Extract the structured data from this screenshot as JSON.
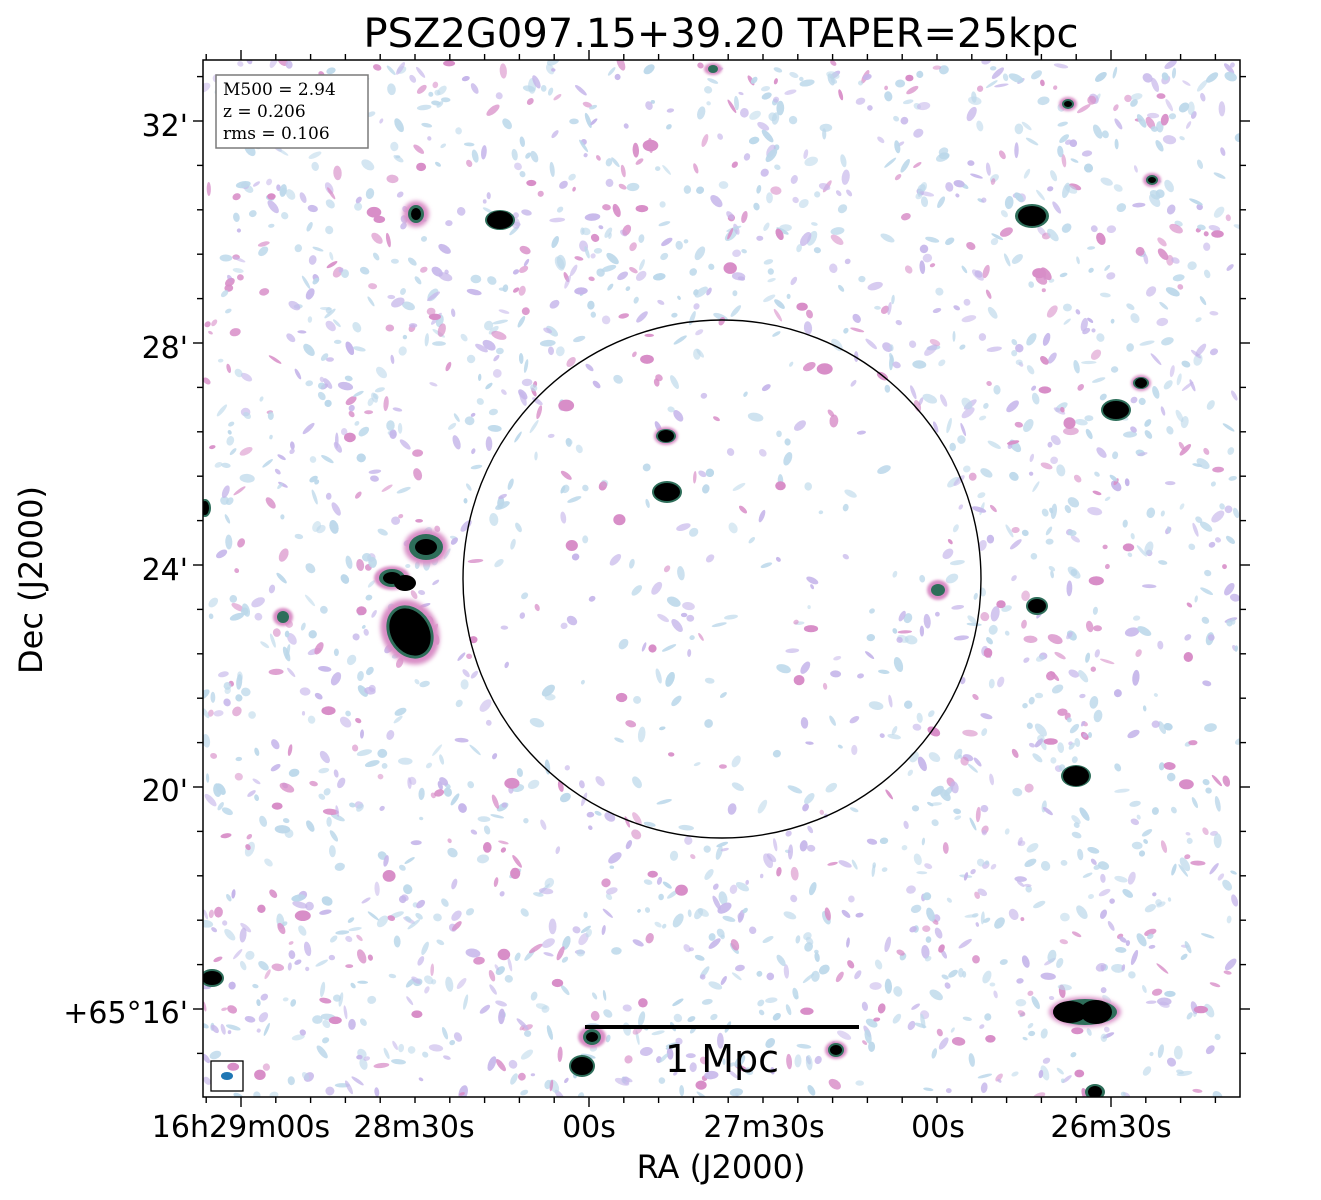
{
  "title": "PSZ2G097.15+39.20 TAPER=25kpc",
  "axes": {
    "xlabel": "RA (J2000)",
    "ylabel": "Dec (J2000)",
    "x_ticks": [
      "16h29m00s",
      "28m30s",
      "00s",
      "27m30s",
      "00s",
      "26m30s"
    ],
    "y_ticks": [
      "32'",
      "28'",
      "24'",
      "20'",
      "+65°16'"
    ]
  },
  "info_box": {
    "mass": "M500 = 2.94",
    "redshift": "z = 0.206",
    "rms": "rms = 0.106"
  },
  "scale_bar": {
    "label": "1 Mpc"
  },
  "colors": {
    "noise_light": "#bcd8ea",
    "noise_lavender": "#c6b6ea",
    "noise_pink": "#d88ec8",
    "source_core": "#000000",
    "source_edge": "#2e6e5a",
    "beam": "#1f77b4"
  }
}
